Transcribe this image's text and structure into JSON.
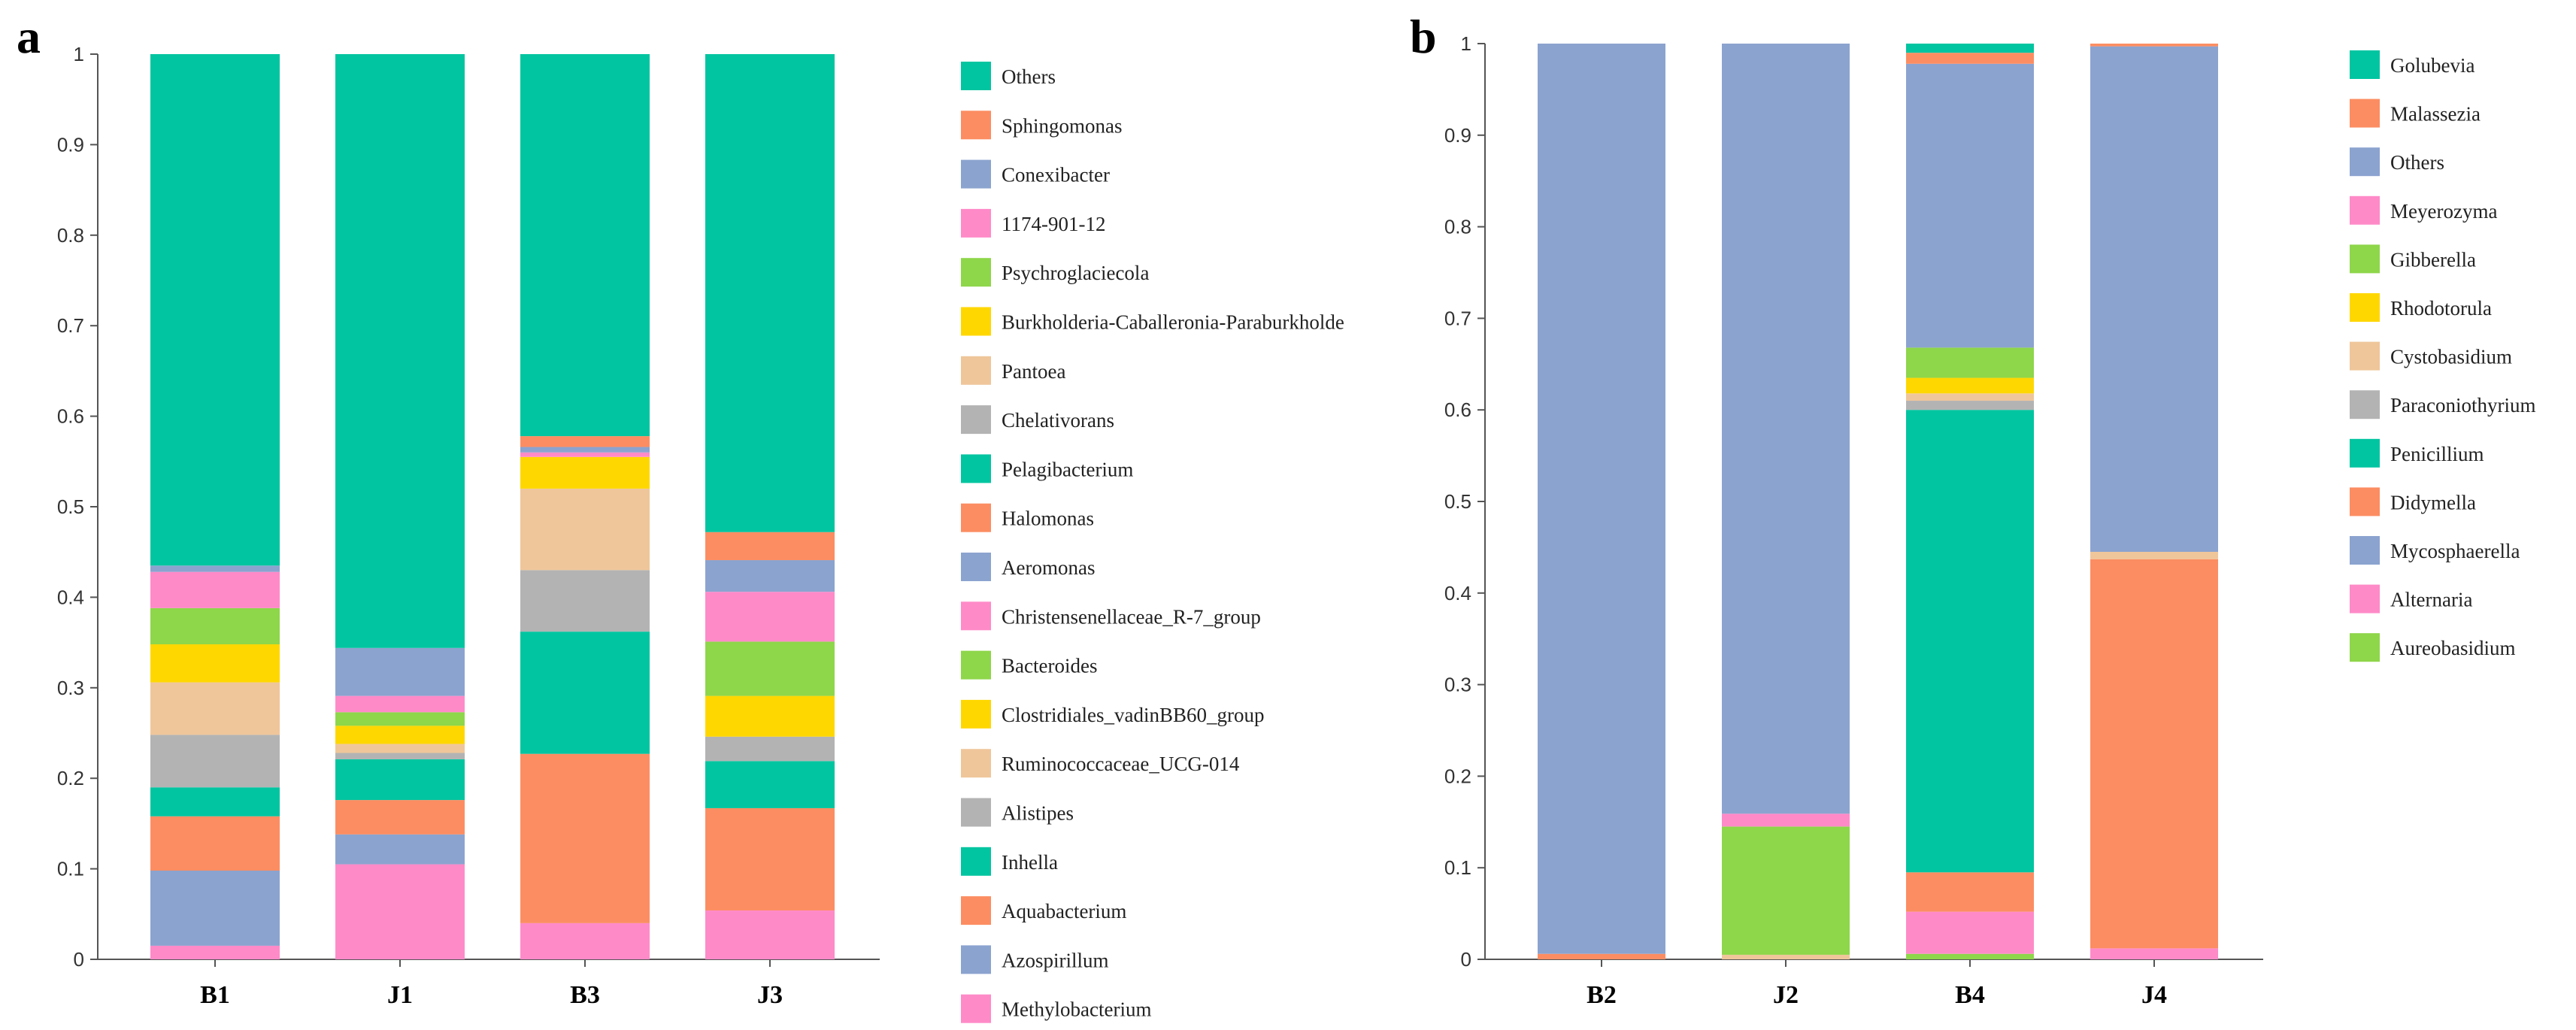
{
  "chart_data": [
    {
      "type": "bar",
      "stacked": true,
      "panel_label": "a",
      "title": "",
      "xlabel": "",
      "ylabel": "",
      "ylim": [
        0,
        1
      ],
      "yticks": [
        "0",
        "0.1",
        "0.2",
        "0.3",
        "0.4",
        "0.5",
        "0.6",
        "0.7",
        "0.8",
        "0.9",
        "1"
      ],
      "categories": [
        "B1",
        "J1",
        "B3",
        "J3"
      ],
      "legend_position": "right",
      "series": [
        {
          "name": "Methylobacterium",
          "color": "#FF8AC8",
          "values": [
            0.015,
            0.105,
            0.04,
            0.054
          ]
        },
        {
          "name": "Azospirillum",
          "color": "#8BA3CF",
          "values": [
            0.083,
            0.033,
            0.0,
            0.0
          ]
        },
        {
          "name": "Aquabacterium",
          "color": "#FC8D62",
          "values": [
            0.06,
            0.038,
            0.187,
            0.113
          ]
        },
        {
          "name": "Inhella",
          "color": "#00C5A0",
          "values": [
            0.032,
            0.045,
            0.135,
            0.052
          ]
        },
        {
          "name": "Alistipes",
          "color": "#B3B3B3",
          "values": [
            0.058,
            0.007,
            0.068,
            0.027
          ]
        },
        {
          "name": "Ruminococcaceae_UCG-014",
          "color": "#EFC69A",
          "values": [
            0.058,
            0.01,
            0.09,
            0.0
          ]
        },
        {
          "name": "Clostridiales_vadinBB60_group",
          "color": "#FFD700",
          "values": [
            0.042,
            0.02,
            0.035,
            0.045
          ]
        },
        {
          "name": "Bacteroides",
          "color": "#8ED64A",
          "values": [
            0.04,
            0.015,
            0.0,
            0.06
          ]
        },
        {
          "name": "Christensenellaceae_R-7_group",
          "color": "#FF8AC8",
          "values": [
            0.04,
            0.018,
            0.005,
            0.055
          ]
        },
        {
          "name": "Aeromonas",
          "color": "#8BA3CF",
          "values": [
            0.007,
            0.053,
            0.006,
            0.035
          ]
        },
        {
          "name": "Halomonas",
          "color": "#FC8D62",
          "values": [
            0.0,
            0.0,
            0.012,
            0.031
          ]
        },
        {
          "name": "Pelagibacterium",
          "color": "#00C5A0",
          "values": [
            0.0,
            0.0,
            0.0,
            0.0
          ]
        },
        {
          "name": "Chelativorans",
          "color": "#B3B3B3",
          "values": [
            0.0,
            0.0,
            0.0,
            0.0
          ]
        },
        {
          "name": "Pantoea",
          "color": "#EFC69A",
          "values": [
            0.0,
            0.0,
            0.0,
            0.0
          ]
        },
        {
          "name": "Burkholderia-Caballeronia-Paraburkholde",
          "color": "#FFD700",
          "values": [
            0.0,
            0.0,
            0.0,
            0.0
          ]
        },
        {
          "name": "Psychroglaciecola",
          "color": "#8ED64A",
          "values": [
            0.0,
            0.0,
            0.0,
            0.0
          ]
        },
        {
          "name": "1174-901-12",
          "color": "#FF8AC8",
          "values": [
            0.0,
            0.0,
            0.0,
            0.0
          ]
        },
        {
          "name": "Conexibacter",
          "color": "#8BA3CF",
          "values": [
            0.0,
            0.0,
            0.0,
            0.0
          ]
        },
        {
          "name": "Sphingomonas",
          "color": "#FC8D62",
          "values": [
            0.0,
            0.0,
            0.0,
            0.0
          ]
        },
        {
          "name": "Others",
          "color": "#00C5A0",
          "values": [
            0.565,
            0.656,
            0.422,
            0.528
          ]
        }
      ]
    },
    {
      "type": "bar",
      "stacked": true,
      "panel_label": "b",
      "title": "",
      "xlabel": "",
      "ylabel": "",
      "ylim": [
        0,
        1
      ],
      "yticks": [
        "0",
        "0.1",
        "0.2",
        "0.3",
        "0.4",
        "0.5",
        "0.6",
        "0.7",
        "0.8",
        "0.9",
        "1"
      ],
      "categories": [
        "B2",
        "J2",
        "B4",
        "J4"
      ],
      "legend_position": "right",
      "series": [
        {
          "name": "Aureobasidium",
          "color": "#8ED64A",
          "values": [
            0.0,
            0.0,
            0.006,
            0.0
          ]
        },
        {
          "name": "Alternaria",
          "color": "#FF8AC8",
          "values": [
            0.0,
            0.0,
            0.046,
            0.012
          ]
        },
        {
          "name": "Mycosphaerella",
          "color": "#8BA3CF",
          "values": [
            0.0,
            0.0,
            0.0,
            0.0
          ]
        },
        {
          "name": "Didymella",
          "color": "#FC8D62",
          "values": [
            0.006,
            0.0,
            0.043,
            0.425
          ]
        },
        {
          "name": "Penicillium",
          "color": "#00C5A0",
          "values": [
            0.0,
            0.0,
            0.505,
            0.0
          ]
        },
        {
          "name": "Paraconiothyrium",
          "color": "#B3B3B3",
          "values": [
            0.0,
            0.0,
            0.01,
            0.0
          ]
        },
        {
          "name": "Cystobasidium",
          "color": "#EFC69A",
          "values": [
            0.0,
            0.005,
            0.008,
            0.008
          ]
        },
        {
          "name": "Rhodotorula",
          "color": "#FFD700",
          "values": [
            0.0,
            0.0,
            0.017,
            0.0
          ]
        },
        {
          "name": "Gibberella",
          "color": "#8ED64A",
          "values": [
            0.0,
            0.14,
            0.033,
            0.0
          ]
        },
        {
          "name": "Meyerozyma",
          "color": "#FF8AC8",
          "values": [
            0.0,
            0.014,
            0.0,
            0.0
          ]
        },
        {
          "name": "Others",
          "color": "#8BA3CF",
          "values": [
            0.994,
            0.841,
            0.31,
            0.552
          ]
        },
        {
          "name": "Malassezia",
          "color": "#FC8D62",
          "values": [
            0.0,
            0.0,
            0.012,
            0.003
          ]
        },
        {
          "name": "Golubevia",
          "color": "#00C5A0",
          "values": [
            0.0,
            0.0,
            0.01,
            0.0
          ]
        }
      ]
    }
  ]
}
